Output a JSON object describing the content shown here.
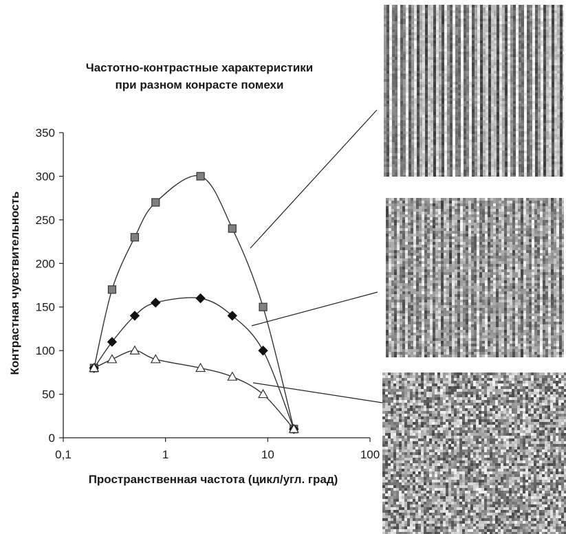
{
  "chart_data": {
    "type": "line",
    "title_lines": [
      "Частотно-контрастные характеристики",
      "при разном конрасте помехи"
    ],
    "xlabel": "Пространственная частота (цикл/угл. град)",
    "ylabel": "Контрастная чувствительность",
    "x_scale": "log",
    "xlim": [
      0.1,
      100
    ],
    "ylim": [
      0,
      350
    ],
    "x_ticks": [
      "0,1",
      "1",
      "10",
      "100"
    ],
    "y_ticks": [
      "0",
      "50",
      "100",
      "150",
      "200",
      "250",
      "300",
      "350"
    ],
    "grid": false,
    "series": [
      {
        "marker": "square",
        "color": "#808080",
        "x": [
          0.2,
          0.3,
          0.5,
          0.8,
          2.2,
          4.5,
          9,
          18
        ],
        "values": [
          80,
          170,
          230,
          270,
          300,
          240,
          150,
          10
        ]
      },
      {
        "marker": "diamond",
        "color": "#111111",
        "x": [
          0.2,
          0.3,
          0.5,
          0.8,
          2.2,
          4.5,
          9,
          18
        ],
        "values": [
          80,
          110,
          140,
          155,
          160,
          140,
          100,
          10
        ]
      },
      {
        "marker": "triangle",
        "color": "#ffffff",
        "x": [
          0.2,
          0.3,
          0.5,
          0.8,
          2.2,
          4.5,
          9,
          18
        ],
        "values": [
          80,
          90,
          100,
          90,
          80,
          70,
          50,
          10
        ]
      }
    ]
  },
  "noise_images": [
    {
      "name": "low-noise-grating",
      "stripe_strength": 0.85,
      "noise": 0.25
    },
    {
      "name": "medium-noise-grating",
      "stripe_strength": 0.5,
      "noise": 0.5
    },
    {
      "name": "high-noise-grating",
      "stripe_strength": 0.0,
      "noise": 0.9
    }
  ]
}
